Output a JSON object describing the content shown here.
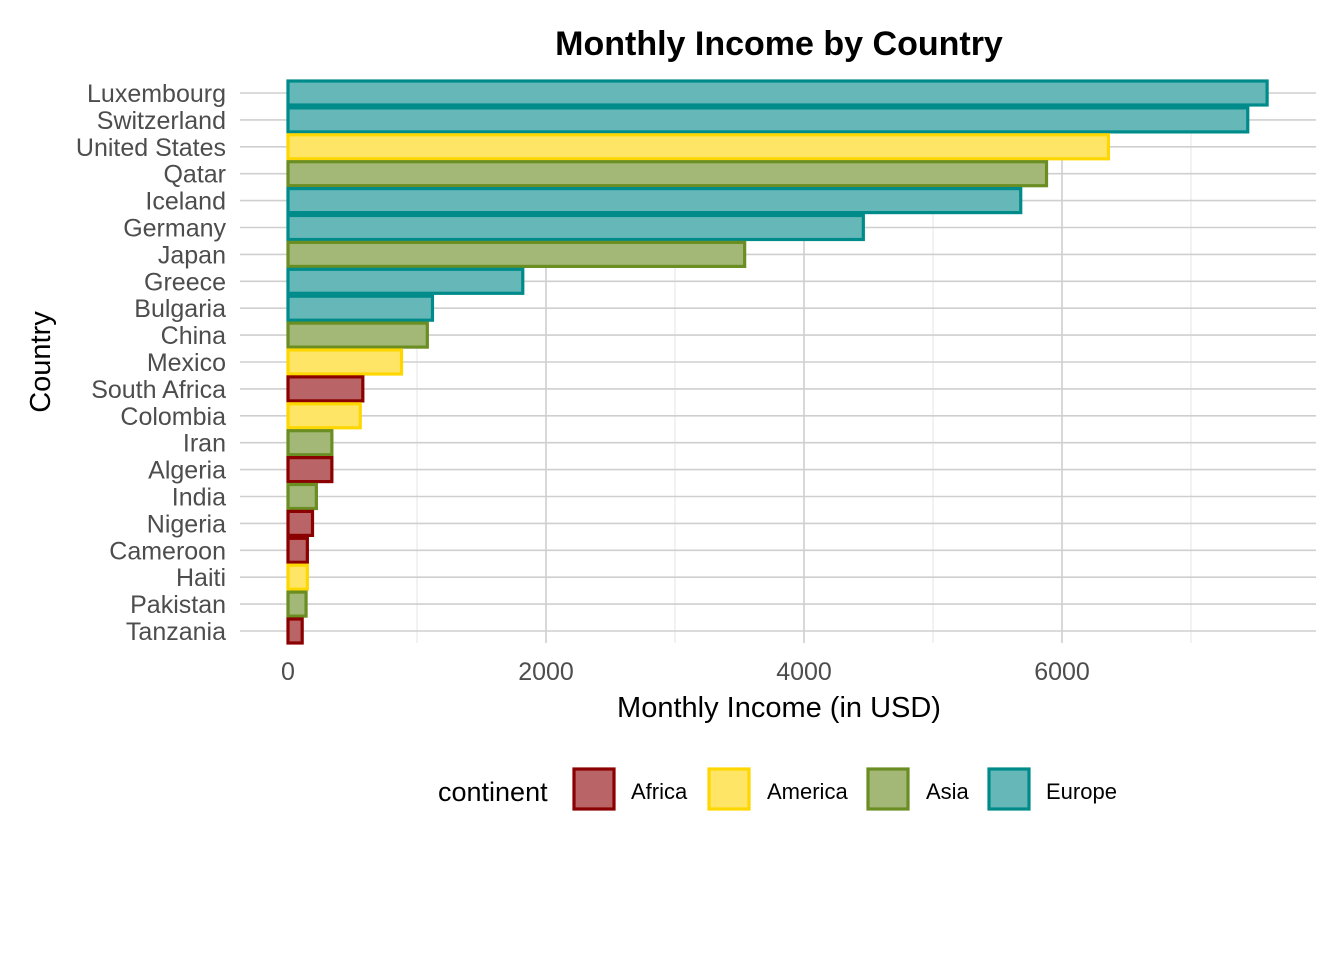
{
  "chart_data": {
    "type": "bar",
    "orientation": "horizontal",
    "title": "Monthly Income by Country",
    "xlabel": "Monthly Income (in USD)",
    "ylabel": "Country",
    "xlim": [
      0,
      7600
    ],
    "xticks": [
      0,
      2000,
      4000,
      6000
    ],
    "grid": true,
    "legend": {
      "title": "continent",
      "position": "bottom",
      "entries": [
        {
          "name": "Africa",
          "fill": "#b96466",
          "stroke": "#8b0000"
        },
        {
          "name": "America",
          "fill": "#ffe566",
          "stroke": "#ffd700"
        },
        {
          "name": "Asia",
          "fill": "#a3b877",
          "stroke": "#6b8e23"
        },
        {
          "name": "Europe",
          "fill": "#66b8b8",
          "stroke": "#008b8b"
        }
      ]
    },
    "categories": [
      "Luxembourg",
      "Switzerland",
      "United States",
      "Qatar",
      "Iceland",
      "Germany",
      "Japan",
      "Greece",
      "Bulgaria",
      "China",
      "Mexico",
      "South Africa",
      "Colombia",
      "Iran",
      "Algeria",
      "India",
      "Nigeria",
      "Cameroon",
      "Haiti",
      "Pakistan",
      "Tanzania"
    ],
    "values": [
      7590,
      7440,
      6360,
      5880,
      5680,
      4460,
      3540,
      1820,
      1120,
      1080,
      880,
      580,
      560,
      340,
      340,
      220,
      190,
      150,
      150,
      140,
      110
    ],
    "continents": [
      "Europe",
      "Europe",
      "America",
      "Asia",
      "Europe",
      "Europe",
      "Asia",
      "Europe",
      "Europe",
      "Asia",
      "America",
      "Africa",
      "America",
      "Asia",
      "Africa",
      "Asia",
      "Africa",
      "Africa",
      "America",
      "Asia",
      "Africa"
    ]
  }
}
